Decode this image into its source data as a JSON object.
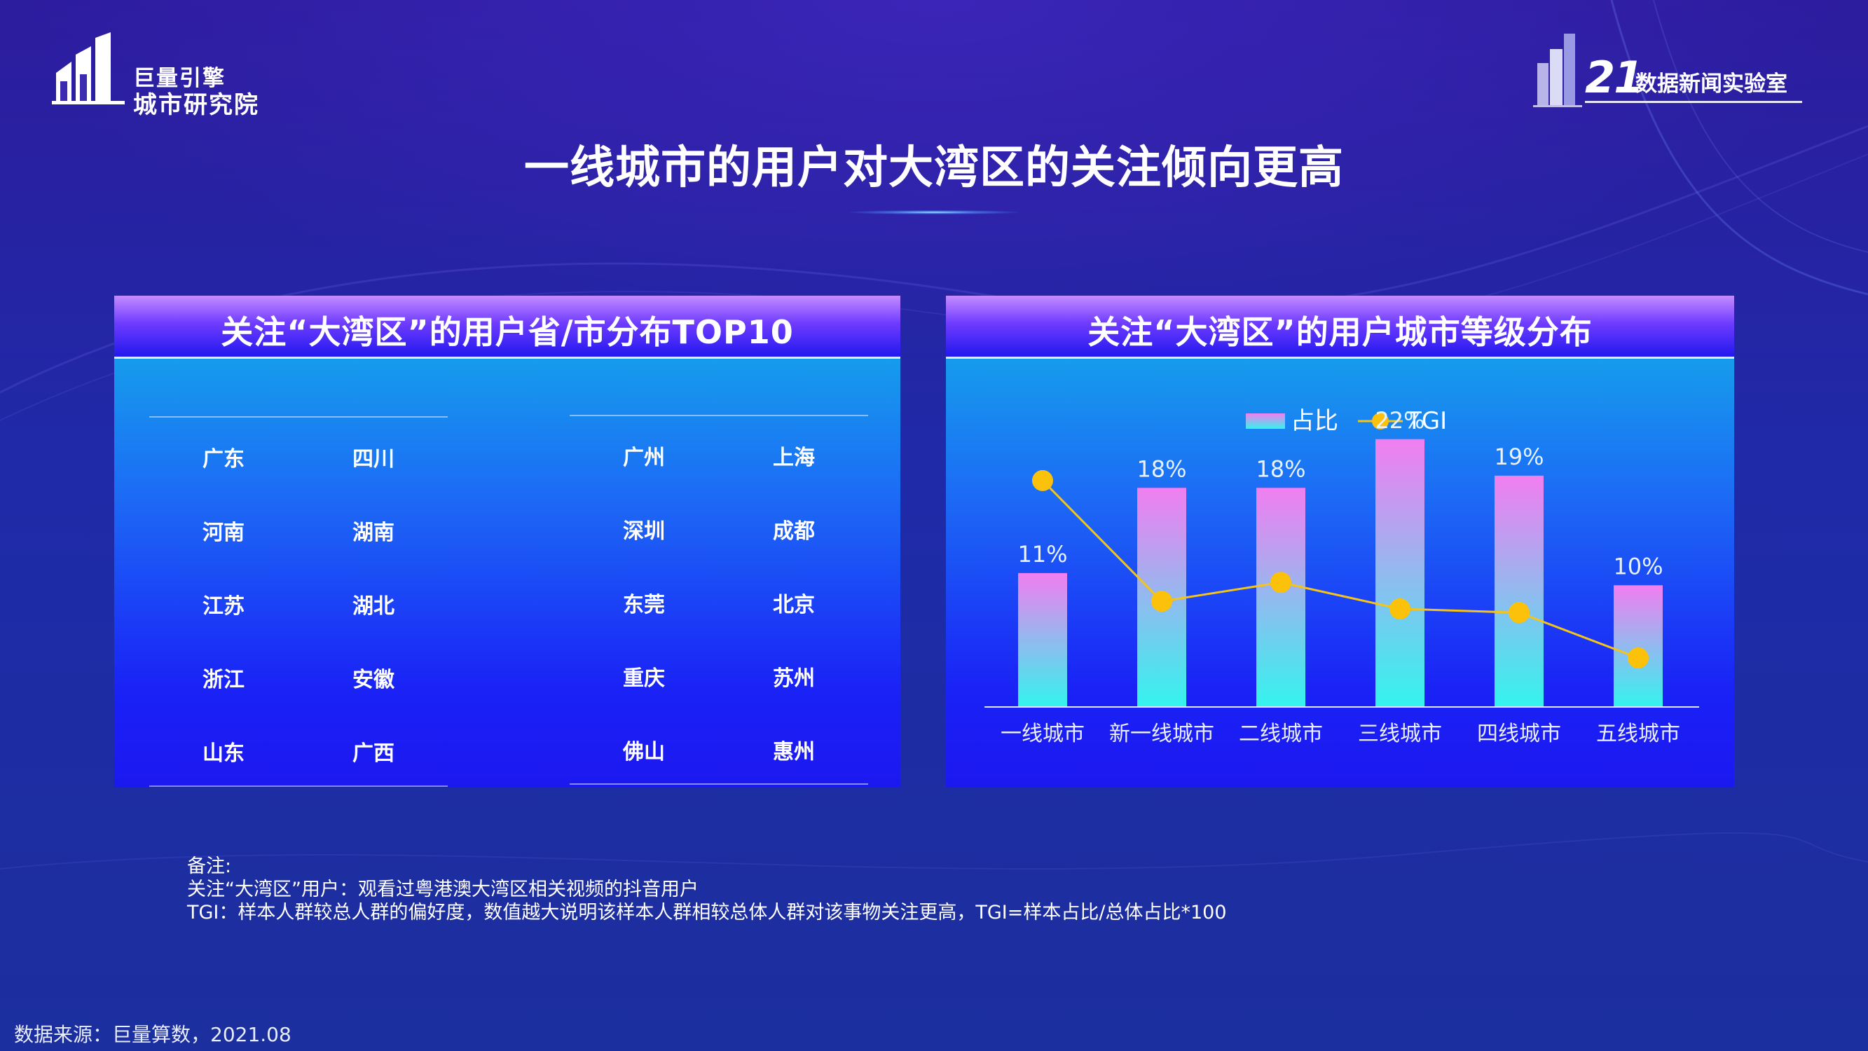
{
  "brand_left": {
    "line1": "巨量引擎",
    "line2": "城市研究院"
  },
  "brand_right": {
    "number": "21",
    "text": "数据新闻实验室"
  },
  "title": "一线城市的用户对大湾区的关注倾向更高",
  "left_panel": {
    "title": "关注“大湾区”的用户省/市分布TOP10",
    "provinces": [
      "广东",
      "四川",
      "河南",
      "湖南",
      "江苏",
      "湖北",
      "浙江",
      "安徽",
      "山东",
      "广西"
    ],
    "cities": [
      "广州",
      "上海",
      "深圳",
      "成都",
      "东莞",
      "北京",
      "重庆",
      "苏州",
      "佛山",
      "惠州"
    ]
  },
  "right_panel": {
    "title": "关注“大湾区”的用户城市等级分布"
  },
  "notes": {
    "heading": "备注:",
    "line1": "关注“大湾区”用户：观看过粤港澳大湾区相关视频的抖音用户",
    "line2": "TGI：样本人群较总人群的偏好度，数值越大说明该样本人群相较总体人群对该事物关注更高，TGI=样本占比/总体占比*100"
  },
  "source": "数据来源：巨量算数，2021.08",
  "chart_data": {
    "type": "bar",
    "title": "关注“大湾区”的用户城市等级分布",
    "categories": [
      "一线城市",
      "新一线城市",
      "二线城市",
      "三线城市",
      "四线城市",
      "五线城市"
    ],
    "series": [
      {
        "name": "占比",
        "type": "bar",
        "values": [
          11,
          18,
          18,
          22,
          19,
          10
        ],
        "labels": [
          "11%",
          "18%",
          "18%",
          "22%",
          "19%",
          "10%"
        ]
      },
      {
        "name": "TGI",
        "type": "line",
        "values": [
          150,
          118,
          123,
          116,
          115,
          103
        ]
      }
    ],
    "ylim": [
      0,
      24
    ],
    "tgi_range": [
      90,
      160
    ],
    "legend": "top-center",
    "grid": false,
    "colors": {
      "bar_top": "#f27ef0",
      "bar_bottom": "#33f4ee",
      "line": "#f5c419",
      "point": "#fcc10b"
    }
  }
}
